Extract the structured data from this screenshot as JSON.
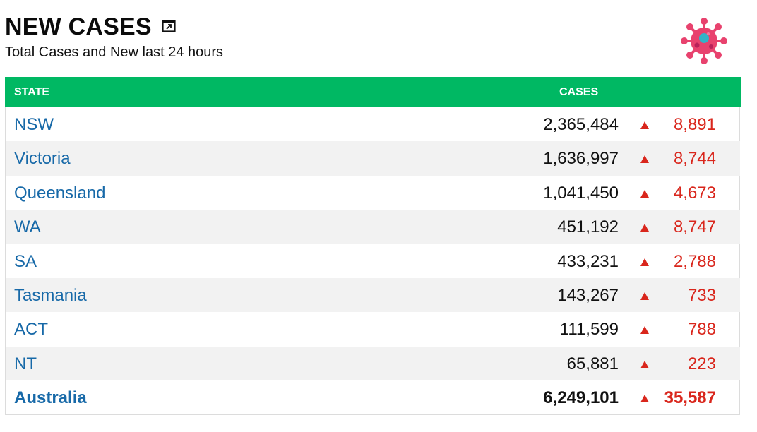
{
  "header": {
    "title": "NEW CASES",
    "subtitle": "Total Cases and New last 24 hours"
  },
  "table": {
    "columns": {
      "state": "STATE",
      "cases": "CASES"
    },
    "rows": [
      {
        "state": "NSW",
        "cases": "2,365,484",
        "new": "8,891"
      },
      {
        "state": "Victoria",
        "cases": "1,636,997",
        "new": "8,744"
      },
      {
        "state": "Queensland",
        "cases": "1,041,450",
        "new": "4,673"
      },
      {
        "state": "WA",
        "cases": "451,192",
        "new": "8,747"
      },
      {
        "state": "SA",
        "cases": "433,231",
        "new": "2,788"
      },
      {
        "state": "Tasmania",
        "cases": "143,267",
        "new": "733"
      },
      {
        "state": "ACT",
        "cases": "111,599",
        "new": "788"
      },
      {
        "state": "NT",
        "cases": "65,881",
        "new": "223"
      }
    ],
    "total": {
      "state": "Australia",
      "cases": "6,249,101",
      "new": "35,587"
    }
  },
  "icons": {
    "expand": "expand-icon",
    "virus": "virus-icon",
    "trend_up": "triangle-up-icon"
  },
  "colors": {
    "header_bg": "#00b863",
    "state_link": "#1769a8",
    "increase": "#d9261c",
    "virus": "#e8426e"
  }
}
